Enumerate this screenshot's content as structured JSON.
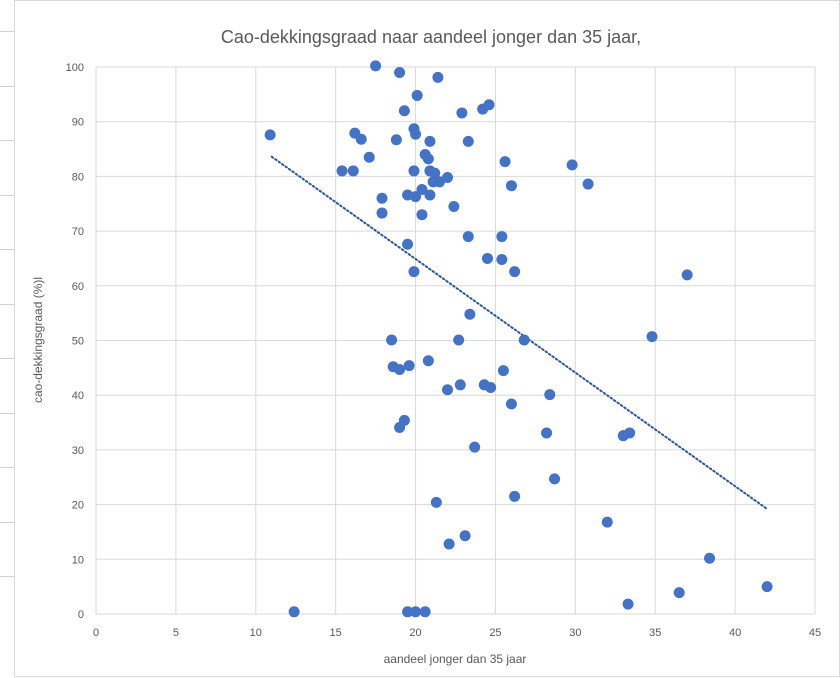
{
  "chart_data": {
    "type": "scatter",
    "title": "Cao-dekkingsgraad naar aandeel jonger dan 35 jaar,",
    "xlabel": "aandeel jonger dan 35 jaar",
    "ylabel": "cao-dekkingsgraad (%)l",
    "xlim": [
      0,
      45
    ],
    "ylim": [
      0,
      100
    ],
    "x_ticks": [
      "0",
      "5",
      "10",
      "15",
      "20",
      "25",
      "30",
      "35",
      "40",
      "45"
    ],
    "y_ticks": [
      "0",
      "10",
      "20",
      "30",
      "40",
      "50",
      "60",
      "70",
      "80",
      "90",
      "100"
    ],
    "grid": true,
    "marker_color": "#4472c4",
    "trendline": {
      "style": "dotted",
      "color": "#2e5597",
      "x": [
        11.0,
        42.0
      ],
      "y": [
        83.6,
        19.2
      ]
    },
    "points": [
      {
        "x": 17.5,
        "y": 100.2
      },
      {
        "x": 19.0,
        "y": 99.0
      },
      {
        "x": 21.4,
        "y": 98.1
      },
      {
        "x": 20.1,
        "y": 94.8
      },
      {
        "x": 24.6,
        "y": 93.1
      },
      {
        "x": 24.2,
        "y": 92.3
      },
      {
        "x": 19.3,
        "y": 92.0
      },
      {
        "x": 22.9,
        "y": 91.6
      },
      {
        "x": 10.9,
        "y": 87.6
      },
      {
        "x": 16.2,
        "y": 87.9
      },
      {
        "x": 16.6,
        "y": 86.8
      },
      {
        "x": 18.8,
        "y": 86.7
      },
      {
        "x": 19.9,
        "y": 88.7
      },
      {
        "x": 20.0,
        "y": 87.7
      },
      {
        "x": 20.9,
        "y": 86.4
      },
      {
        "x": 23.3,
        "y": 86.4
      },
      {
        "x": 20.6,
        "y": 84.0
      },
      {
        "x": 20.8,
        "y": 83.2
      },
      {
        "x": 17.1,
        "y": 83.5
      },
      {
        "x": 25.6,
        "y": 82.7
      },
      {
        "x": 29.8,
        "y": 82.1
      },
      {
        "x": 15.4,
        "y": 81.0
      },
      {
        "x": 16.1,
        "y": 81.0
      },
      {
        "x": 19.9,
        "y": 81.0
      },
      {
        "x": 20.9,
        "y": 81.0
      },
      {
        "x": 21.2,
        "y": 80.6
      },
      {
        "x": 22.0,
        "y": 79.8
      },
      {
        "x": 21.1,
        "y": 79.0
      },
      {
        "x": 21.5,
        "y": 79.0
      },
      {
        "x": 26.0,
        "y": 78.3
      },
      {
        "x": 30.8,
        "y": 78.6
      },
      {
        "x": 20.4,
        "y": 77.6
      },
      {
        "x": 19.5,
        "y": 76.6
      },
      {
        "x": 20.0,
        "y": 76.3
      },
      {
        "x": 20.9,
        "y": 76.6
      },
      {
        "x": 17.9,
        "y": 76.0
      },
      {
        "x": 22.4,
        "y": 74.5
      },
      {
        "x": 17.9,
        "y": 73.3
      },
      {
        "x": 20.4,
        "y": 73.0
      },
      {
        "x": 23.3,
        "y": 69.0
      },
      {
        "x": 25.4,
        "y": 69.0
      },
      {
        "x": 19.5,
        "y": 67.6
      },
      {
        "x": 24.5,
        "y": 65.0
      },
      {
        "x": 25.4,
        "y": 64.8
      },
      {
        "x": 19.9,
        "y": 62.6
      },
      {
        "x": 26.2,
        "y": 62.6
      },
      {
        "x": 37.0,
        "y": 62.0
      },
      {
        "x": 23.4,
        "y": 54.8
      },
      {
        "x": 34.8,
        "y": 50.7
      },
      {
        "x": 18.5,
        "y": 50.1
      },
      {
        "x": 22.7,
        "y": 50.1
      },
      {
        "x": 26.8,
        "y": 50.1
      },
      {
        "x": 20.8,
        "y": 46.3
      },
      {
        "x": 18.6,
        "y": 45.2
      },
      {
        "x": 19.6,
        "y": 45.4
      },
      {
        "x": 19.0,
        "y": 44.7
      },
      {
        "x": 25.5,
        "y": 44.5
      },
      {
        "x": 22.8,
        "y": 41.9
      },
      {
        "x": 24.3,
        "y": 41.9
      },
      {
        "x": 24.7,
        "y": 41.4
      },
      {
        "x": 22.0,
        "y": 41.0
      },
      {
        "x": 28.4,
        "y": 40.1
      },
      {
        "x": 26.0,
        "y": 38.4
      },
      {
        "x": 19.3,
        "y": 35.4
      },
      {
        "x": 19.0,
        "y": 34.1
      },
      {
        "x": 28.2,
        "y": 33.1
      },
      {
        "x": 33.4,
        "y": 33.1
      },
      {
        "x": 33.0,
        "y": 32.6
      },
      {
        "x": 23.7,
        "y": 30.5
      },
      {
        "x": 28.7,
        "y": 24.7
      },
      {
        "x": 26.2,
        "y": 21.5
      },
      {
        "x": 21.3,
        "y": 20.4
      },
      {
        "x": 32.0,
        "y": 16.8
      },
      {
        "x": 23.1,
        "y": 14.3
      },
      {
        "x": 22.1,
        "y": 12.8
      },
      {
        "x": 38.4,
        "y": 10.2
      },
      {
        "x": 42.0,
        "y": 5.0
      },
      {
        "x": 36.5,
        "y": 3.9
      },
      {
        "x": 33.3,
        "y": 1.8
      },
      {
        "x": 12.4,
        "y": 0.4
      },
      {
        "x": 19.5,
        "y": 0.4
      },
      {
        "x": 20.0,
        "y": 0.4
      },
      {
        "x": 20.6,
        "y": 0.4
      }
    ]
  }
}
